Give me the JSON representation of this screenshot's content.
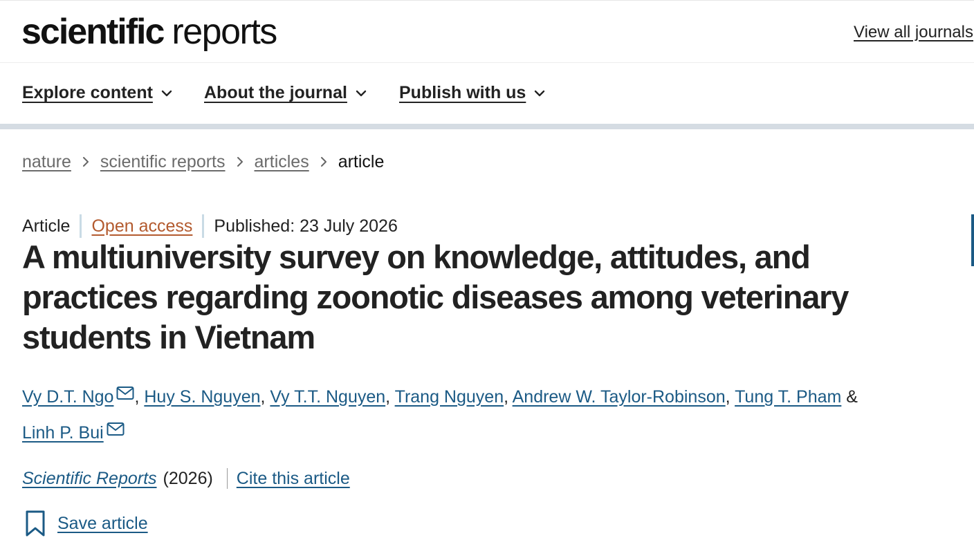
{
  "header": {
    "logo_bold": "scientific",
    "logo_light": "reports",
    "view_all": "View all journals"
  },
  "nav": {
    "items": [
      {
        "label": "Explore content"
      },
      {
        "label": "About the journal"
      },
      {
        "label": "Publish with us"
      }
    ]
  },
  "breadcrumb": {
    "items": [
      "nature",
      "scientific reports",
      "articles"
    ],
    "current": "article"
  },
  "meta": {
    "type": "Article",
    "access": "Open access",
    "published": "Published: 23 July 2026"
  },
  "title": "A multiuniversity survey on knowledge, attitudes, and practices regarding zoonotic diseases among veterinary students in Vietnam",
  "authors": {
    "list": [
      {
        "name": "Vy D.T. Ngo",
        "email": true
      },
      {
        "name": "Huy S. Nguyen",
        "email": false
      },
      {
        "name": "Vy T.T. Nguyen",
        "email": false
      },
      {
        "name": "Trang Nguyen",
        "email": false
      },
      {
        "name": "Andrew W. Taylor-Robinson",
        "email": false
      },
      {
        "name": "Tung T. Pham",
        "email": false
      },
      {
        "name": "Linh P. Bui",
        "email": true
      }
    ],
    "separator": ", ",
    "last_separator": " & "
  },
  "journal": {
    "name": "Scientific Reports",
    "year": "(2026)",
    "cite": "Cite this article"
  },
  "save": {
    "label": "Save article"
  },
  "colors": {
    "link": "#1b5a85",
    "open_access": "#b35a2e",
    "nav_band": "#d5dce3",
    "divider": "#c9dbe5"
  },
  "icons": {
    "nav_chevron": "chevron-down-icon",
    "breadcrumb_separator": "chevron-right-icon",
    "author_email": "envelope-icon",
    "save": "bookmark-icon"
  }
}
